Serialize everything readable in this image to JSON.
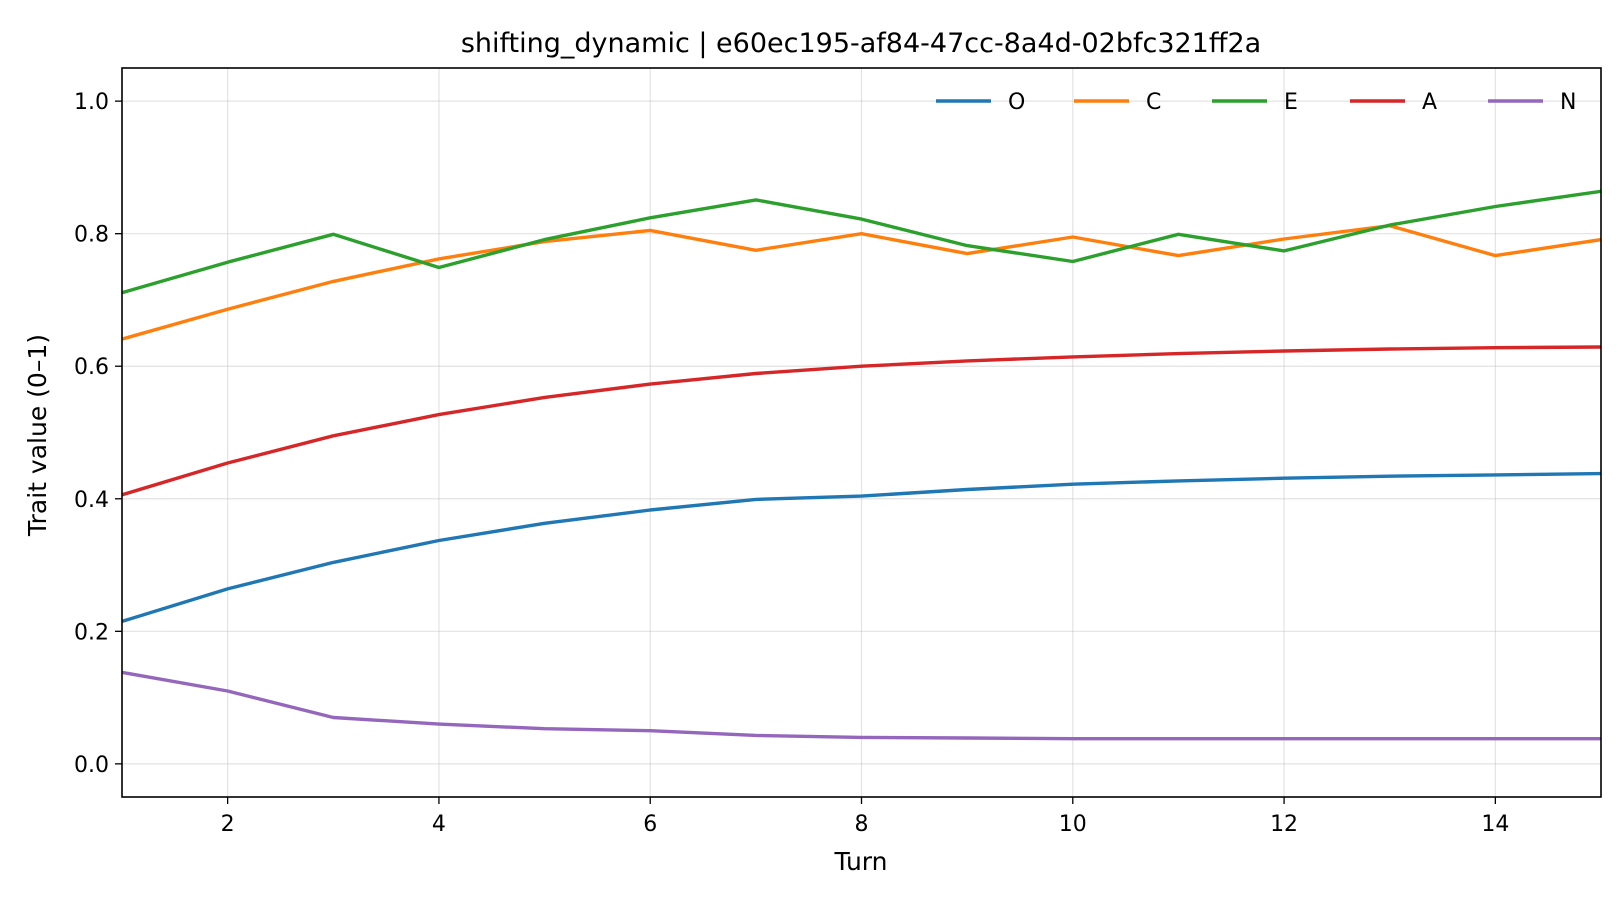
{
  "chart_data": {
    "type": "line",
    "title": "shifting_dynamic | e60ec195-af84-47cc-8a4d-02bfc321ff2a",
    "xlabel": "Turn",
    "ylabel": "Trait value (0–1)",
    "xlim": [
      1,
      15
    ],
    "ylim": [
      -0.05,
      1.05
    ],
    "xticks": [
      2,
      4,
      6,
      8,
      10,
      12,
      14
    ],
    "yticks": [
      0.0,
      0.2,
      0.4,
      0.6,
      0.8,
      1.0
    ],
    "xtick_labels": [
      "2",
      "4",
      "6",
      "8",
      "10",
      "12",
      "14"
    ],
    "ytick_labels": [
      "0.0",
      "0.2",
      "0.4",
      "0.6",
      "0.8",
      "1.0"
    ],
    "grid": true,
    "legend_position": "top-right",
    "x": [
      1,
      2,
      3,
      4,
      5,
      6,
      7,
      8,
      9,
      10,
      11,
      12,
      13,
      14,
      15
    ],
    "series": [
      {
        "name": "O",
        "color": "#1f77b4",
        "values": [
          0.215,
          0.264,
          0.304,
          0.337,
          0.363,
          0.383,
          0.399,
          0.404,
          0.414,
          0.422,
          0.427,
          0.431,
          0.434,
          0.436,
          0.438
        ]
      },
      {
        "name": "C",
        "color": "#ff7f0e",
        "values": [
          0.641,
          0.686,
          0.728,
          0.762,
          0.788,
          0.805,
          0.775,
          0.8,
          0.77,
          0.795,
          0.767,
          0.792,
          0.812,
          0.767,
          0.791
        ]
      },
      {
        "name": "E",
        "color": "#2ca02c",
        "values": [
          0.711,
          0.757,
          0.799,
          0.749,
          0.791,
          0.824,
          0.851,
          0.822,
          0.782,
          0.758,
          0.799,
          0.774,
          0.813,
          0.841,
          0.864
        ]
      },
      {
        "name": "A",
        "color": "#d62728",
        "values": [
          0.406,
          0.454,
          0.495,
          0.527,
          0.553,
          0.573,
          0.589,
          0.6,
          0.608,
          0.614,
          0.619,
          0.623,
          0.626,
          0.628,
          0.629
        ]
      },
      {
        "name": "N",
        "color": "#9467bd",
        "values": [
          0.138,
          0.11,
          0.07,
          0.06,
          0.053,
          0.05,
          0.043,
          0.04,
          0.039,
          0.038,
          0.038,
          0.038,
          0.038,
          0.038,
          0.038
        ]
      }
    ]
  }
}
